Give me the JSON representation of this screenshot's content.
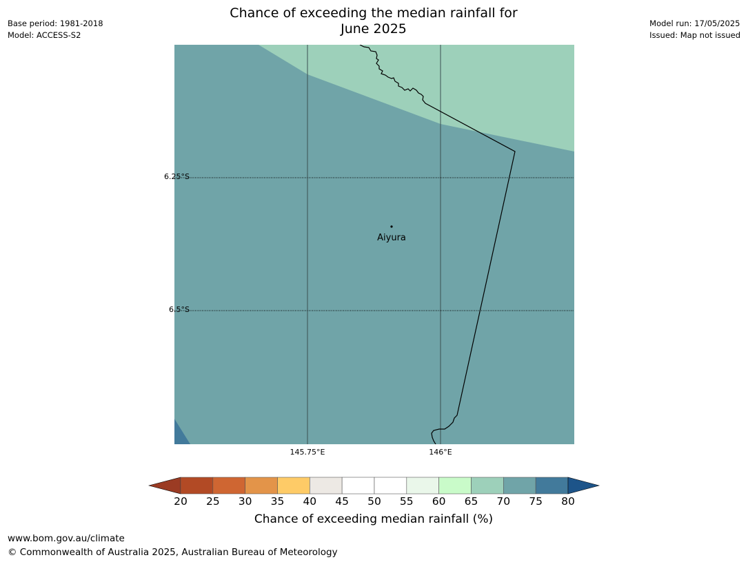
{
  "header": {
    "title_line1": "Chance of exceeding the median rainfall for",
    "title_line2": "June 2025",
    "base_period": "Base period: 1981-2018",
    "model": "Model: ACCESS-S2",
    "model_run": "Model run: 17/05/2025",
    "issued": "Issued: Map not issued"
  },
  "map": {
    "place_name": "Aiyura",
    "lat_labels": [
      "6.25°S",
      "6.5°S"
    ],
    "lon_labels": [
      "145.75°E",
      "146°E"
    ],
    "fill_colors": {
      "base": "#70a4a8",
      "upper_band": "#9dd0ba",
      "corner": "#427a9b"
    }
  },
  "legend": {
    "label": "Chance of exceeding median rainfall (%)",
    "ticks": [
      "20",
      "25",
      "30",
      "35",
      "40",
      "45",
      "50",
      "55",
      "60",
      "65",
      "70",
      "75",
      "80"
    ],
    "low_extend_color": "#9b3b23",
    "high_extend_color": "#1d5489",
    "colors": [
      "#b24a25",
      "#cf6632",
      "#e39449",
      "#fecb67",
      "#ede9e4",
      "#ffffff",
      "#ffffff",
      "#eaf7ea",
      "#c9fbc9",
      "#9dd0ba",
      "#70a4a8",
      "#427a9b"
    ]
  },
  "footer": {
    "url": "www.bom.gov.au/climate",
    "copyright": "© Commonwealth of Australia 2025, Australian Bureau of Meteorology"
  }
}
